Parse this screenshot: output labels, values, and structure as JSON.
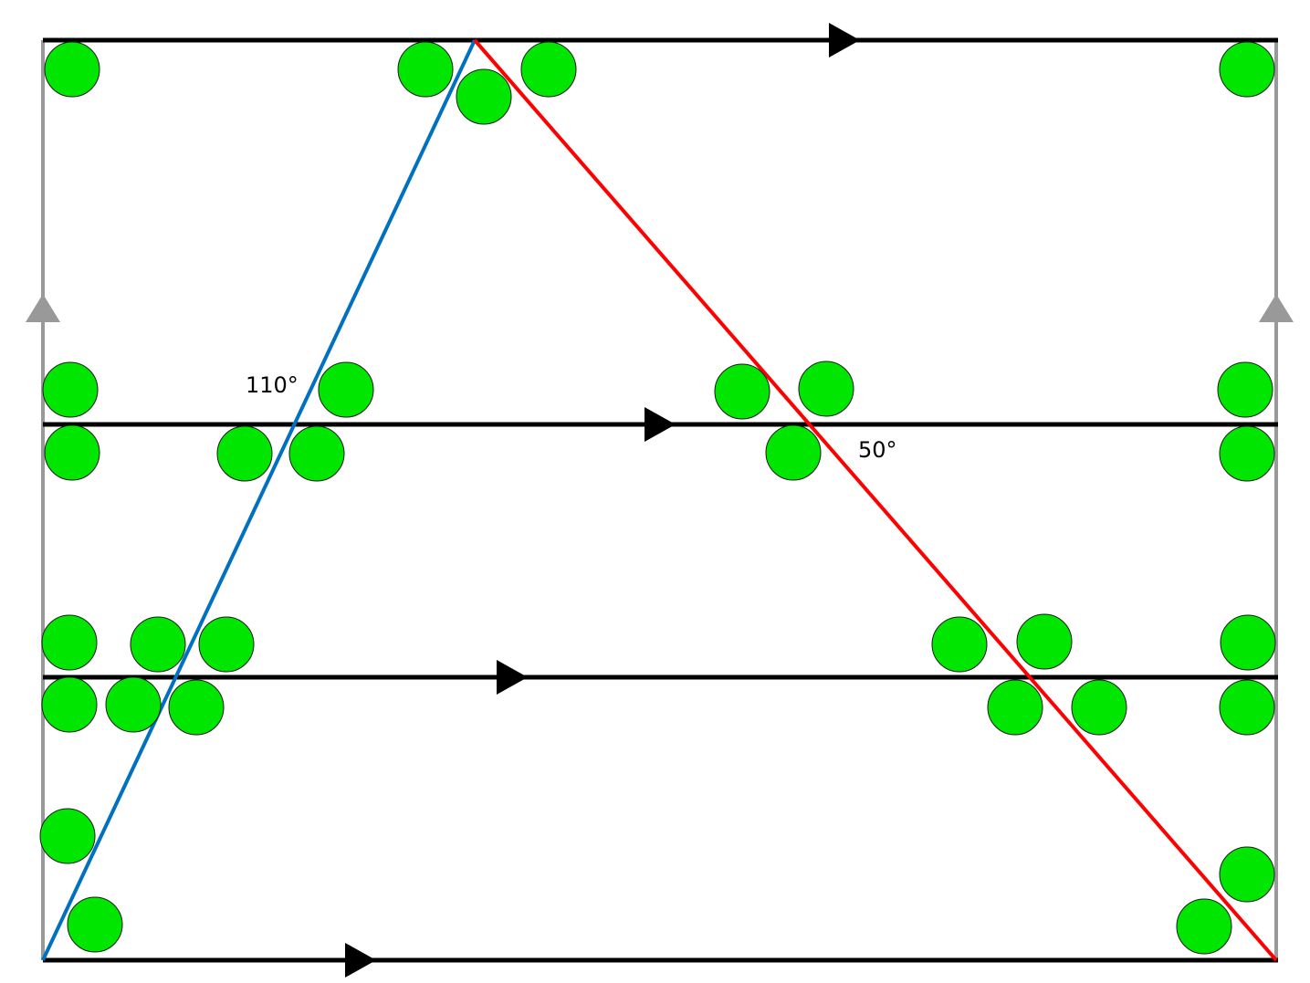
{
  "labels": {
    "angle_left": "110°",
    "angle_right": "50°"
  },
  "colors": {
    "parallel_lines": "#000000",
    "side_lines": "#999999",
    "blue_transversal": "#0070c0",
    "red_transversal": "#ff0000",
    "markers": "#00e600",
    "marker_outline": "#1a1a1a"
  }
}
